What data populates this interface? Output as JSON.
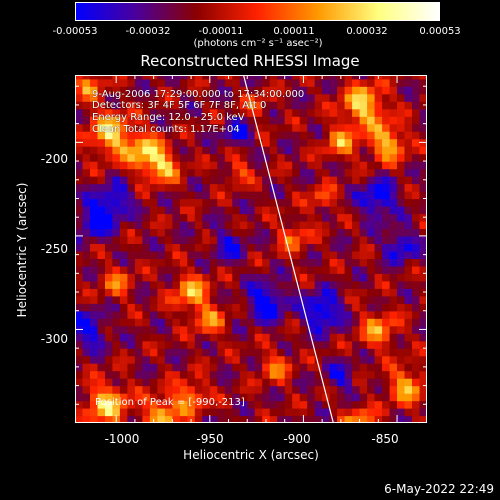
{
  "colorbar": {
    "ticks": [
      "-0.00053",
      "-0.00032",
      "-0.00011",
      "0.00011",
      "0.00032",
      "0.00053"
    ],
    "unit": "(photons cm⁻² s⁻¹ asec⁻²)",
    "colors": [
      "#0000ff",
      "#4b009a",
      "#8b0000",
      "#ff2200",
      "#ff9900",
      "#ffff80",
      "#ffffff"
    ]
  },
  "chart_data": {
    "type": "heatmap",
    "title": "Reconstructed RHESSI Image",
    "xlabel": "Heliocentric X (arcsec)",
    "ylabel": "Heliocentric Y (arcsec)",
    "xlim": [
      -1022,
      -834
    ],
    "ylim": [
      -350,
      -164
    ],
    "xticks": [
      "-1000",
      "-950",
      "-900",
      "-850"
    ],
    "yticks": [
      "-200",
      "-250",
      "-300"
    ],
    "color_range": [
      -0.00053,
      0.00053
    ],
    "limb_line": {
      "x": [
        -932,
        -884
      ],
      "y": [
        -164,
        -350
      ]
    },
    "peak_position": [
      -990,
      -213
    ]
  },
  "info": {
    "line1": "9-Aug-2006 17:29:00.000 to 17:34:00.000",
    "line2": "Detectors: 3F 4F 5F 6F 7F 8F, Att 0",
    "line3": "Energy Range: 12.0 - 25.0 keV",
    "line4": "Clean     Total counts: 1.17E+04",
    "peak": "Position of Peak = [-990,-213]"
  },
  "timestamp": "6-May-2022 22:49"
}
